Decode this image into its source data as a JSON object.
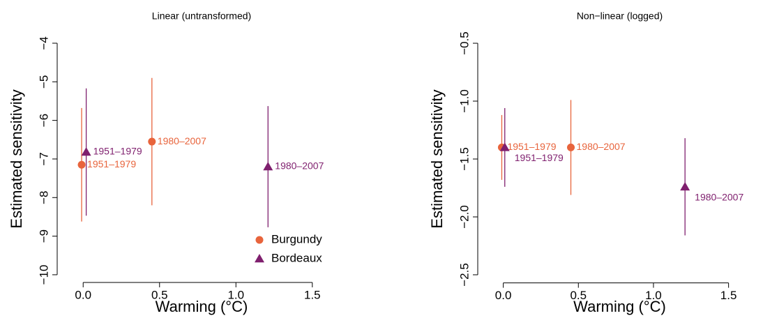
{
  "chart_data": [
    {
      "type": "scatter",
      "title": "Linear (untransformed)",
      "xlabel": "Warming (°C)",
      "ylabel": "Estimated sensitivity",
      "xlim": [
        -0.17,
        1.72
      ],
      "ylim": [
        -10.2,
        -3.8
      ],
      "xticks": [
        {
          "value": 0,
          "label": "0.0"
        },
        0.5,
        {
          "value": 1,
          "label": "1.0"
        },
        1.5
      ],
      "yticks": [
        {
          "value": -10,
          "label": "−10"
        },
        {
          "value": -9,
          "label": "−9"
        },
        {
          "value": -8,
          "label": "−8"
        },
        {
          "value": -7,
          "label": "−7"
        },
        {
          "value": -6,
          "label": "−6"
        },
        {
          "value": -5,
          "label": "−5"
        },
        {
          "value": -4,
          "label": "−4"
        }
      ],
      "legend": "bottom-right",
      "series": [
        {
          "name": "Burgundy",
          "color": "#e8643c",
          "marker": "circle",
          "x": [
            -0.01,
            0.45
          ],
          "values": [
            -7.15,
            -6.55
          ],
          "errors": [
            1.47,
            1.65
          ],
          "labels": [
            "1951–1979",
            "1980–2007"
          ]
        },
        {
          "name": "Bordeaux",
          "color": "#7f1f6e",
          "marker": "triangle",
          "x": [
            0.02,
            1.21
          ],
          "values": [
            -6.82,
            -7.2
          ],
          "errors": [
            1.65,
            1.57
          ],
          "labels": [
            "1951–1979",
            "1980–2007"
          ]
        }
      ]
    },
    {
      "type": "scatter",
      "title": "Non−linear (logged)",
      "xlabel": "Warming (°C)",
      "ylabel": "Estimated sensitivity",
      "xlim": [
        -0.17,
        1.72
      ],
      "ylim": [
        -2.57,
        -0.43
      ],
      "xticks": [
        {
          "value": 0,
          "label": "0.0"
        },
        0.5,
        {
          "value": 1,
          "label": "1.0"
        },
        1.5
      ],
      "yticks": [
        {
          "value": -2.5,
          "label": "−2.5"
        },
        {
          "value": -2,
          "label": "−2.0"
        },
        {
          "value": -1.5,
          "label": "−1.5"
        },
        {
          "value": -1,
          "label": "−1.0"
        },
        {
          "value": -0.5,
          "label": "−0.5"
        }
      ],
      "series": [
        {
          "name": "Burgundy",
          "color": "#e8643c",
          "marker": "circle",
          "x": [
            -0.01,
            0.45
          ],
          "values": [
            -1.4,
            -1.4
          ],
          "errors": [
            0.28,
            0.41
          ],
          "labels": [
            "1951–1979",
            "1980–2007"
          ]
        },
        {
          "name": "Bordeaux",
          "color": "#7f1f6e",
          "marker": "triangle",
          "x": [
            0.01,
            1.21
          ],
          "values": [
            -1.4,
            -1.74
          ],
          "errors": [
            0.34,
            0.42
          ],
          "labels": [
            "1951–1979",
            "1980–2007"
          ]
        }
      ]
    }
  ]
}
